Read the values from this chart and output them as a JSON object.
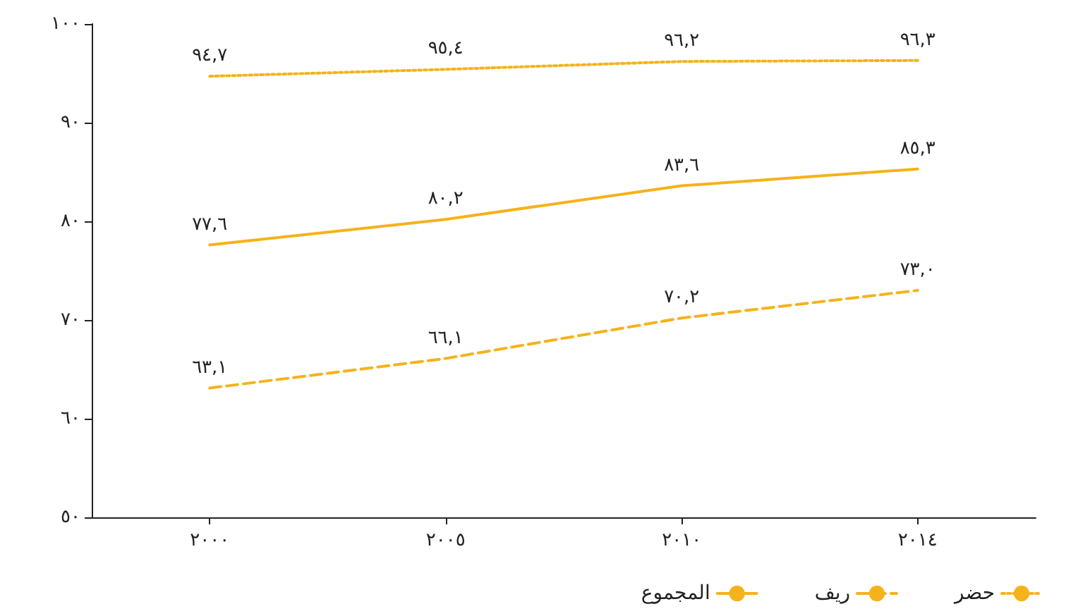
{
  "chart_data": {
    "type": "line",
    "categories": [
      "٢٠٠٠",
      "٢٠٠٥",
      "٢٠١٠",
      "٢٠١٤"
    ],
    "series": [
      {
        "name": "حضر",
        "color": "#f5b21b",
        "line_style": "dotted",
        "values": [
          94.7,
          95.4,
          96.2,
          96.3
        ],
        "value_labels": [
          "٩٤,٧",
          "٩٥,٤",
          "٩٦,٢",
          "٩٦,٣"
        ]
      },
      {
        "name": "ريف",
        "color": "#f5b21b",
        "line_style": "dashed",
        "values": [
          63.1,
          66.1,
          70.2,
          73.0
        ],
        "value_labels": [
          "٦٣,١",
          "٦٦,١",
          "٧٠,٢",
          "٧٣,٠"
        ]
      },
      {
        "name": "المجموع",
        "color": "#f5b21b",
        "line_style": "solid",
        "values": [
          77.6,
          80.2,
          83.6,
          85.3
        ],
        "value_labels": [
          "٧٧,٦",
          "٨٠,٢",
          "٨٣,٦",
          "٨٥,٣"
        ]
      }
    ],
    "ylim": [
      50,
      100
    ],
    "yticks": [
      {
        "value": 50,
        "label": "٥٠"
      },
      {
        "value": 60,
        "label": "٦٠"
      },
      {
        "value": 70,
        "label": "٧٠"
      },
      {
        "value": 80,
        "label": "٨٠"
      },
      {
        "value": 90,
        "label": "٩٠"
      },
      {
        "value": 100,
        "label": "١٠٠"
      }
    ],
    "grid": false,
    "legend": "bottom",
    "marker": "none"
  }
}
